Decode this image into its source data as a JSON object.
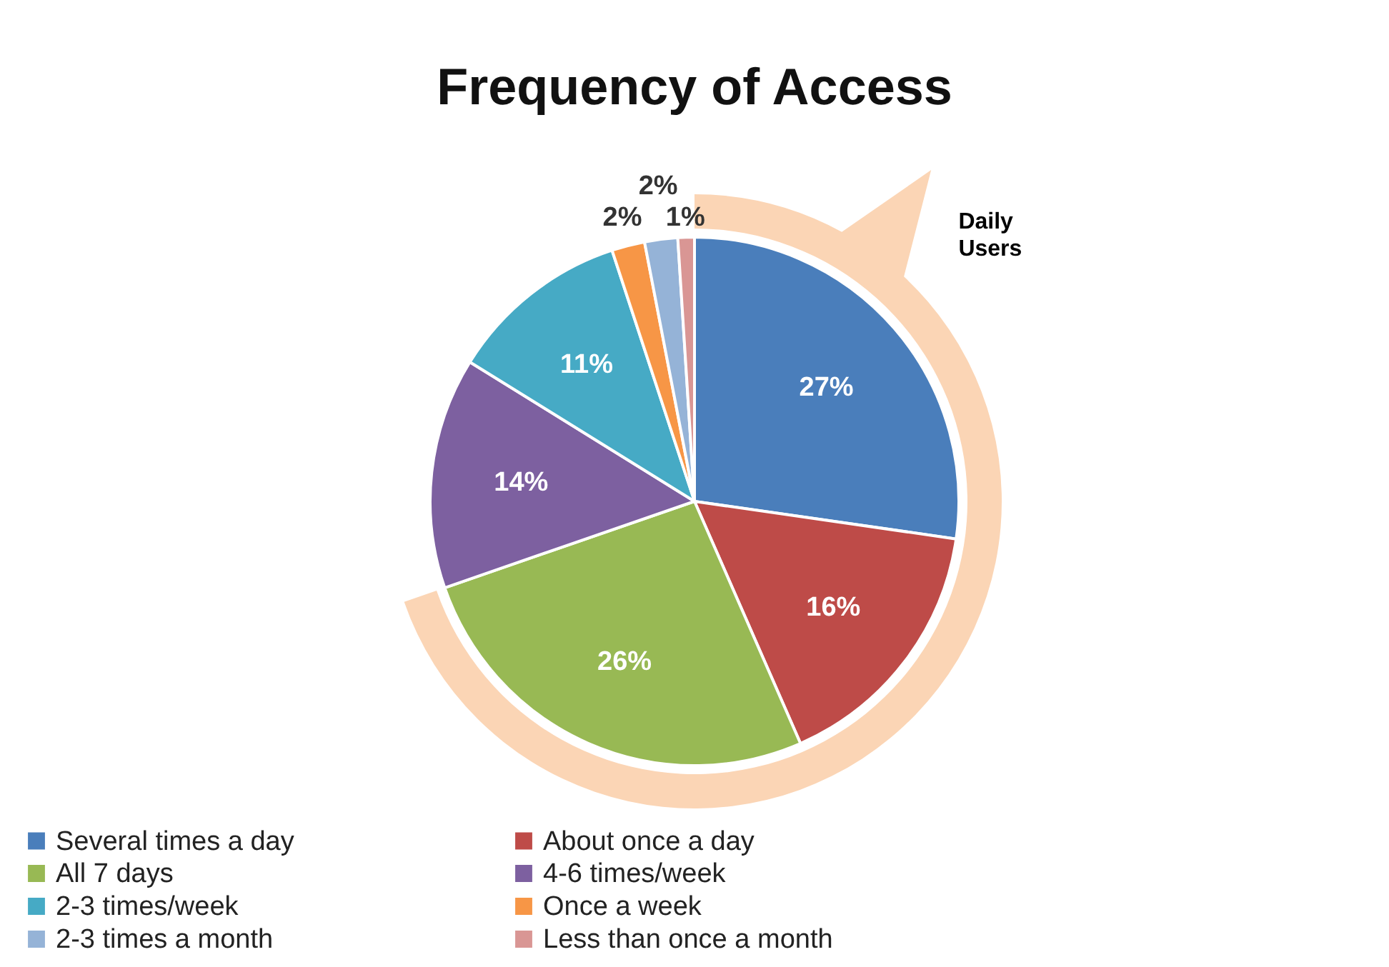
{
  "chart_data": {
    "type": "pie",
    "title": "Frequency of Access",
    "categories": [
      "Several times a day",
      "About once a day",
      "All 7 days",
      "4-6 times/week",
      "2-3 times/week",
      "Once a week",
      "2-3 times a month",
      "Less than once a month"
    ],
    "values": [
      27,
      16,
      26,
      14,
      11,
      2,
      2,
      1
    ],
    "colors": [
      "#4a7ebb",
      "#be4b48",
      "#98b954",
      "#7d60a0",
      "#46aac5",
      "#f79646",
      "#95b3d7",
      "#d99694"
    ],
    "value_labels": [
      "27%",
      "16%",
      "26%",
      "14%",
      "11%",
      "2%",
      "2%",
      "1%"
    ],
    "annotations": [
      "Daily Users"
    ],
    "legend": "bottom"
  }
}
